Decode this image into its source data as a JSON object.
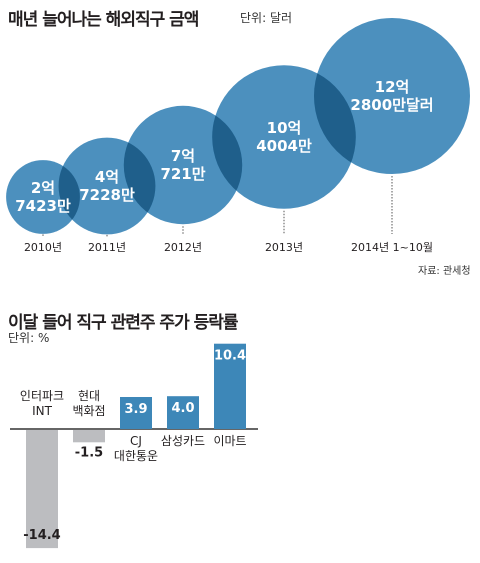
{
  "chart_data": [
    {
      "type": "bubble",
      "title": "매년 늘어나는 해외직구 금액",
      "unit": "단위: 달러",
      "source": "자료: 관세청",
      "categories": [
        "2010년",
        "2011년",
        "2012년",
        "2013년",
        "2014년 1~10월"
      ],
      "labels": [
        [
          "2억",
          "7423만"
        ],
        [
          "4억",
          "7228만"
        ],
        [
          "7억",
          "721만"
        ],
        [
          "10억",
          "4004만"
        ],
        [
          "12억",
          "2800만달러"
        ]
      ],
      "values": [
        274230000,
        472280000,
        707210000,
        1040040000,
        1228000000
      ],
      "color": "#3d87b8"
    },
    {
      "type": "bar",
      "title": "이달 들어 직구 관련주 주가 등락률",
      "unit": "단위: %",
      "categories": [
        "인터파크 INT",
        "현대 백화점",
        "CJ 대한통운",
        "삼성카드",
        "이마트"
      ],
      "category_lines": [
        [
          "인터파크",
          "INT"
        ],
        [
          "현대",
          "백화점"
        ],
        [
          "CJ",
          "대한통운"
        ],
        [
          "삼성카드"
        ],
        [
          "이마트"
        ]
      ],
      "values": [
        -14.4,
        -1.5,
        3.9,
        4.0,
        10.4
      ],
      "value_labels": [
        "-14.4",
        "-1.5",
        "3.9",
        "4.0",
        "10.4"
      ],
      "positive_color": "#3d87b8",
      "negative_color": "#bcbdc0"
    }
  ]
}
